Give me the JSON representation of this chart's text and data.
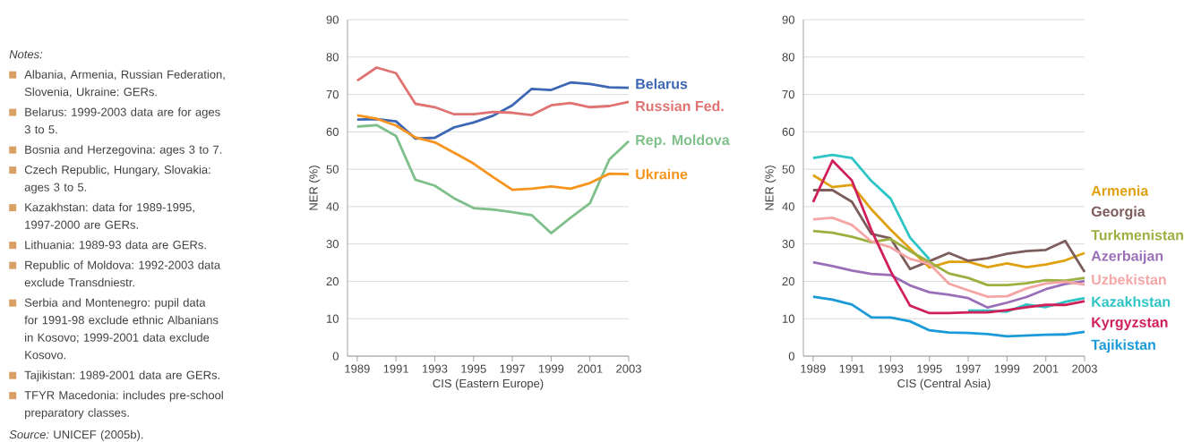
{
  "chart_data": [
    {
      "type": "other",
      "title": "Notes:",
      "annotations": [
        "Albania, Armenia, Russian Federation, Slovenia, Ukraine: GERs.",
        "Belarus: 1999-2003 data are for ages 3 to 5.",
        "Bosnia and Herzegovina: ages 3 to 7.",
        "Czech Republic, Hungary, Slovakia: ages 3 to 5.",
        "Kazakhstan: data for 1989-1995, 1997-2000 are GERs.",
        "Lithuania: 1989-93 data are GERs.",
        "Republic of Moldova: 1992-2003 data exclude Transdniestr.",
        "Serbia and Montenegro: pupil data for 1991-98 exclude ethnic Albanians in Kosovo; 1999-2001 data exclude Kosovo.",
        "Tajikistan: 1989-2001 data are GERs.",
        "TFYR Macedonia: includes pre-school preparatory classes."
      ],
      "subtitle": "*Source:* UNICEF (2005b)."
    },
    {
      "type": "line",
      "xlabel": "CIS (Eastern Europe)",
      "ylabel": "NER (%)",
      "x": [
        1989,
        1990,
        1991,
        1992,
        1993,
        1994,
        1995,
        1996,
        1997,
        1998,
        1999,
        2000,
        2001,
        2002,
        2003
      ],
      "xlim": [
        1988.5,
        2003
      ],
      "ylim": [
        0,
        90
      ],
      "xticks": [
        1989,
        1991,
        1993,
        1995,
        1997,
        1999,
        2001,
        2003
      ],
      "yticks": [
        0,
        10,
        20,
        30,
        40,
        50,
        60,
        70,
        80,
        90
      ],
      "grid": "y",
      "series": [
        {
          "name": "Belarus",
          "color": "#3d66b4",
          "values": [
            63.3,
            63.4,
            62.8,
            58.2,
            58.4,
            61.2,
            62.5,
            64.3,
            67.1,
            71.5,
            71.2,
            73.2,
            72.8,
            71.9,
            71.8
          ]
        },
        {
          "name": "Russian Fed.",
          "color": "#e07272",
          "values": [
            73.7,
            77.2,
            75.7,
            67.5,
            66.6,
            64.7,
            64.7,
            65.3,
            65.1,
            64.5,
            67.1,
            67.7,
            66.6,
            66.9,
            68.0
          ]
        },
        {
          "name": "Rep. Moldova",
          "color": "#7fc08a",
          "values": [
            61.4,
            61.8,
            58.9,
            47.2,
            45.6,
            42.2,
            39.6,
            39.2,
            38.5,
            37.7,
            32.9,
            37.0,
            40.9,
            52.6,
            57.5
          ]
        },
        {
          "name": "Ukraine",
          "color": "#f7941d",
          "values": [
            64.4,
            63.5,
            61.7,
            58.5,
            57.2,
            54.4,
            51.5,
            47.9,
            44.5,
            44.8,
            45.4,
            44.8,
            46.3,
            48.8,
            48.7
          ]
        }
      ]
    },
    {
      "type": "line",
      "xlabel": "CIS (Central Asia)",
      "ylabel": "NER (%)",
      "x": [
        1989,
        1990,
        1991,
        1992,
        1993,
        1994,
        1995,
        1996,
        1997,
        1998,
        1999,
        2000,
        2001,
        2002,
        2003
      ],
      "xlim": [
        1988.5,
        2003
      ],
      "ylim": [
        0,
        90
      ],
      "xticks": [
        1989,
        1991,
        1993,
        1995,
        1997,
        1999,
        2001,
        2003
      ],
      "yticks": [
        0,
        10,
        20,
        30,
        40,
        50,
        60,
        70,
        80,
        90
      ],
      "grid": "y",
      "series": [
        {
          "name": "Armenia",
          "color": "#e0a010",
          "values": [
            48.4,
            45.2,
            45.8,
            39.3,
            33.8,
            28.7,
            23.7,
            25.2,
            25.2,
            23.8,
            24.8,
            23.8,
            24.5,
            25.6,
            27.6
          ]
        },
        {
          "name": "Georgia",
          "color": "#7d5c5c",
          "values": [
            44.4,
            44.4,
            41.3,
            32.7,
            31.5,
            23.3,
            25.4,
            27.6,
            25.5,
            26.2,
            27.4,
            28.1,
            28.4,
            30.8,
            22.5
          ]
        },
        {
          "name": "Turkmenistan",
          "color": "#9cb040",
          "values": [
            33.5,
            33.0,
            31.9,
            30.5,
            31.3,
            28.1,
            25.2,
            22.1,
            20.9,
            19.0,
            19.0,
            19.5,
            20.3,
            20.2,
            20.9
          ]
        },
        {
          "name": "Azerbaijan",
          "color": "#9b6fb8",
          "values": [
            25.1,
            24.1,
            22.9,
            22.0,
            21.7,
            18.9,
            17.1,
            16.4,
            15.5,
            13.0,
            14.3,
            15.8,
            17.9,
            19.3,
            20.1
          ]
        },
        {
          "name": "Uzbekistan",
          "color": "#f5a5a5",
          "values": [
            36.6,
            37.0,
            35.1,
            30.7,
            29.1,
            26.0,
            24.7,
            19.4,
            17.6,
            15.9,
            16.0,
            18.1,
            19.4,
            19.9,
            19.1
          ]
        },
        {
          "name": "Kazakhstan",
          "color": "#2cc4c4",
          "values": [
            53.0,
            53.8,
            53.0,
            46.9,
            42.1,
            31.7,
            25.9,
            null,
            12.2,
            12.2,
            11.9,
            13.8,
            13.1,
            14.5,
            15.5
          ]
        },
        {
          "name": "Kyrgyzstan",
          "color": "#d0205a",
          "values": [
            41.2,
            52.3,
            47.0,
            33.8,
            22.7,
            13.5,
            11.5,
            11.5,
            11.7,
            11.7,
            12.3,
            13.1,
            13.7,
            13.7,
            14.7
          ]
        },
        {
          "name": "Tajikistan",
          "color": "#1a9ad8",
          "values": [
            15.9,
            15.1,
            13.8,
            10.4,
            10.3,
            9.3,
            6.9,
            6.3,
            6.2,
            5.9,
            5.3,
            5.5,
            5.7,
            5.8,
            6.5
          ]
        }
      ]
    }
  ]
}
